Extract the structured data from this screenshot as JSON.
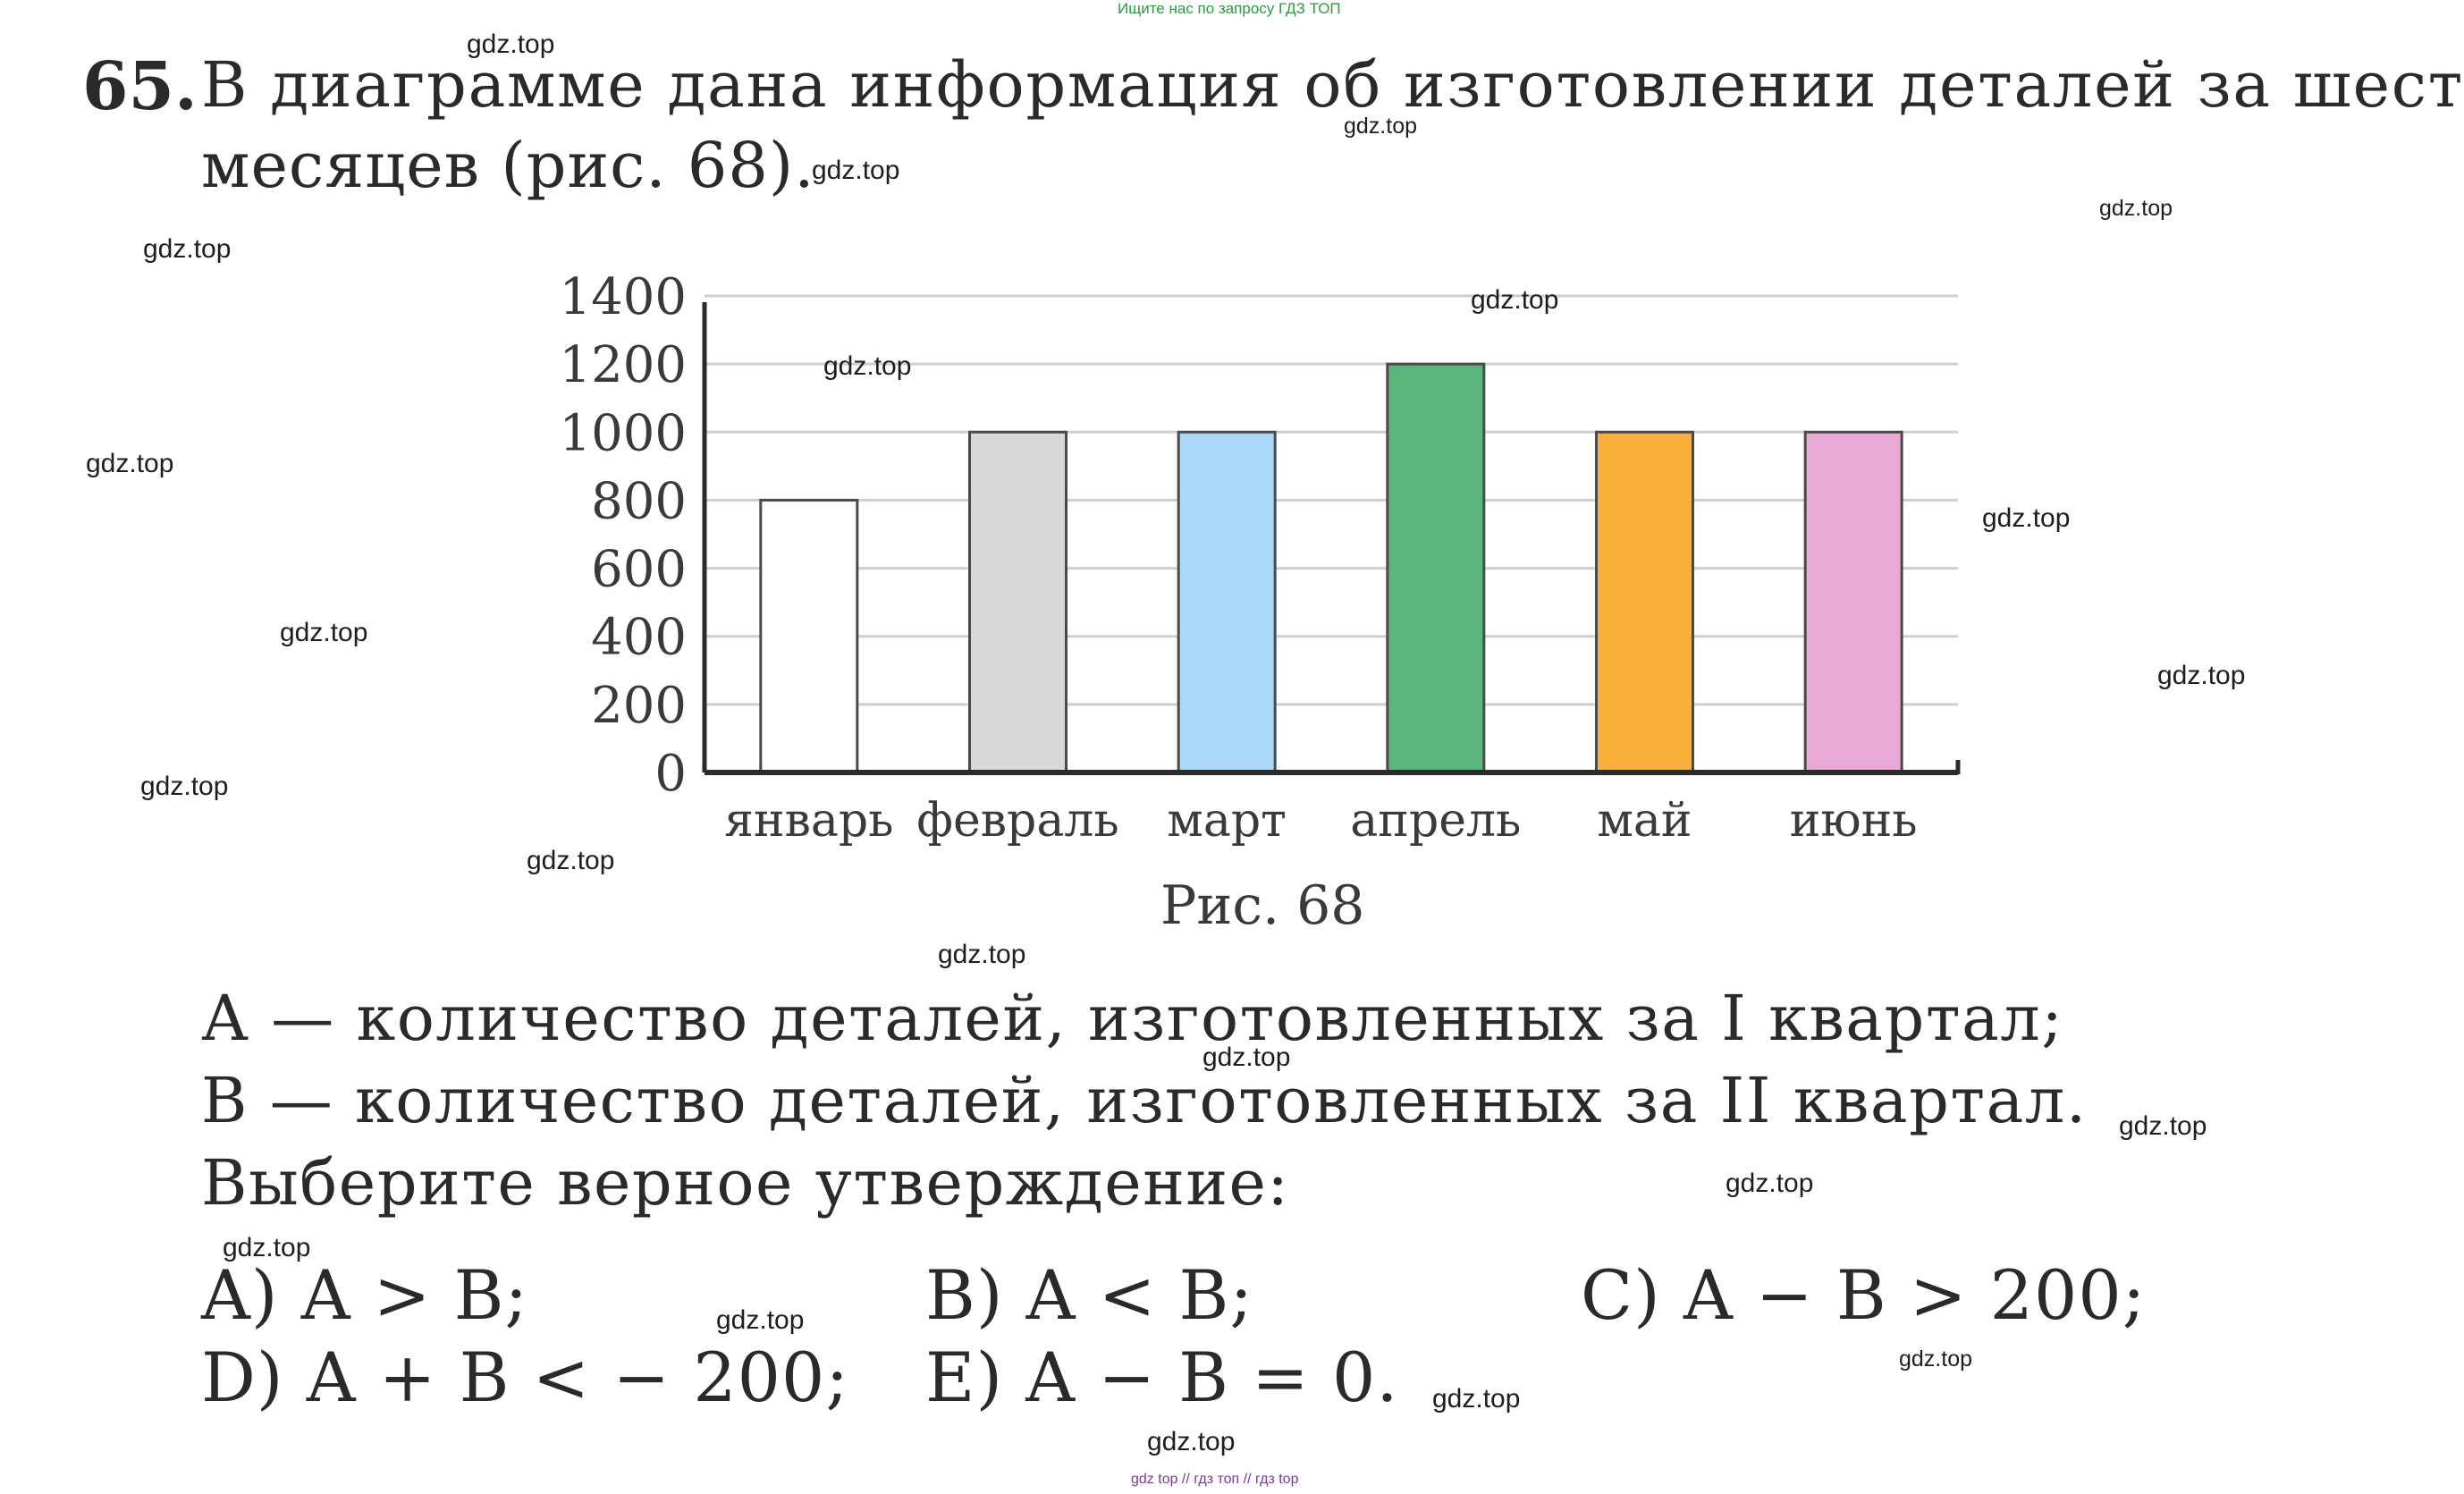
{
  "header_note": "Ищите нас по запросу ГДЗ ТОП",
  "footer_note": "gdz top  //  гдз топ  //  гдз top",
  "task": {
    "number": "65.",
    "line1": "В диаграмме дана информация об изготовлении деталей за шесть",
    "line2": "месяцев (рис. 68)."
  },
  "figure_caption": "Рис. 68",
  "chart_data": {
    "type": "bar",
    "categories": [
      "январь",
      "февраль",
      "март",
      "апрель",
      "май",
      "июнь"
    ],
    "values": [
      800,
      1000,
      1000,
      1200,
      1000,
      1000
    ],
    "colors": [
      "#ffffff",
      "#d8d8d8",
      "#a9d9f6",
      "#5bb67d",
      "#f8b03b",
      "#e8a9d4"
    ],
    "yticks": [
      0,
      200,
      400,
      600,
      800,
      1000,
      1200,
      1400
    ],
    "ylim": [
      0,
      1400
    ],
    "grid": true,
    "title": "",
    "xlabel": "",
    "ylabel": ""
  },
  "definitions": {
    "a_line": "А — количество деталей, изготовленных за I квартал;",
    "b_line": "В — количество деталей, изготовленных за II квартал.",
    "prompt": "Выберите верное утверждение:"
  },
  "options": {
    "a": "A) A > B;",
    "b": "B) A < B;",
    "c": "C) A − B > 200;",
    "d": "D) A + B < − 200;",
    "e": "E) A − B = 0."
  },
  "watermark": "gdz.top"
}
